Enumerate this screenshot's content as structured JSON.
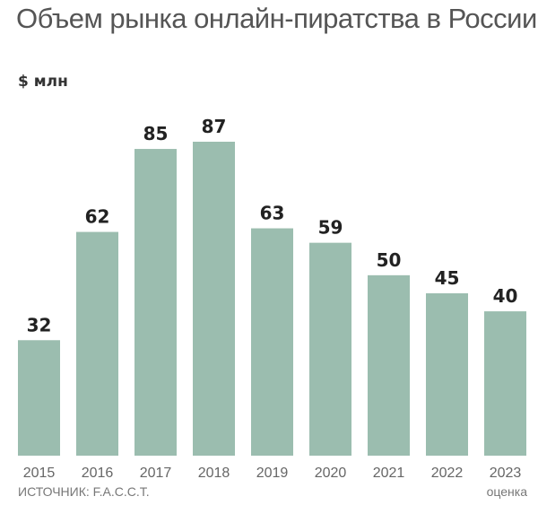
{
  "chart_data": {
    "type": "bar",
    "title": "Объем рынка онлайн-пиратства в России",
    "ylabel": "$ млн",
    "categories": [
      "2015",
      "2016",
      "2017",
      "2018",
      "2019",
      "2020",
      "2021",
      "2022",
      "2023"
    ],
    "values": [
      32,
      62,
      85,
      87,
      63,
      59,
      50,
      45,
      40
    ],
    "ylim": [
      0,
      87
    ],
    "grid": false,
    "bar_color": "#9bbdaf",
    "source": "ИСТОЧНИК: F.A.C.C.T.",
    "annotation": "оценка"
  }
}
